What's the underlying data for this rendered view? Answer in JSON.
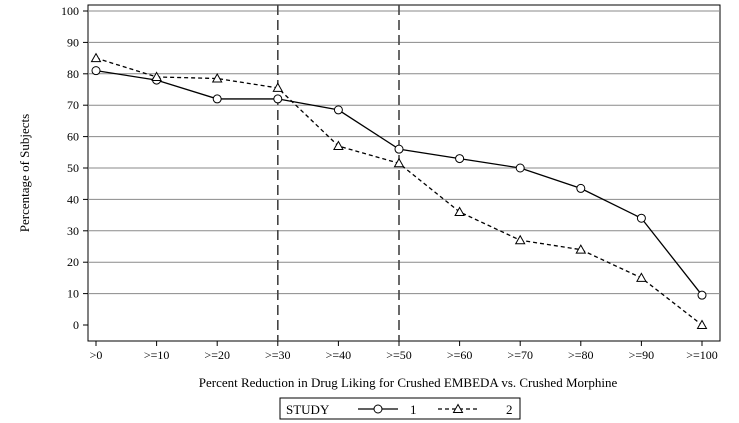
{
  "chart_data": {
    "type": "line",
    "title": "",
    "xlabel": "Percent Reduction in Drug Liking for Crushed EMBEDA vs. Crushed Morphine",
    "ylabel": "Percentage of Subjects",
    "categories": [
      ">0",
      ">=10",
      ">=20",
      ">=30",
      ">=40",
      ">=50",
      ">=60",
      ">=70",
      ">=80",
      ">=90",
      ">=100"
    ],
    "ylim": [
      0,
      100
    ],
    "yticks": [
      0,
      10,
      20,
      30,
      40,
      50,
      60,
      70,
      80,
      90,
      100
    ],
    "grid": "horizontal",
    "reference_lines_at": [
      ">=30",
      ">=50"
    ],
    "legend": {
      "title": "STUDY",
      "placement": "bottom-center"
    },
    "series": [
      {
        "name": "1",
        "marker": "circle",
        "line_style": "solid",
        "color": "#000000",
        "values": [
          81,
          78,
          72,
          72,
          68.5,
          56,
          53,
          50,
          43.5,
          34,
          9.5
        ]
      },
      {
        "name": "2",
        "marker": "triangle",
        "line_style": "dashed",
        "color": "#000000",
        "values": [
          85,
          79,
          78.5,
          75.5,
          57,
          51.5,
          36,
          27,
          24,
          15,
          0
        ]
      }
    ]
  }
}
